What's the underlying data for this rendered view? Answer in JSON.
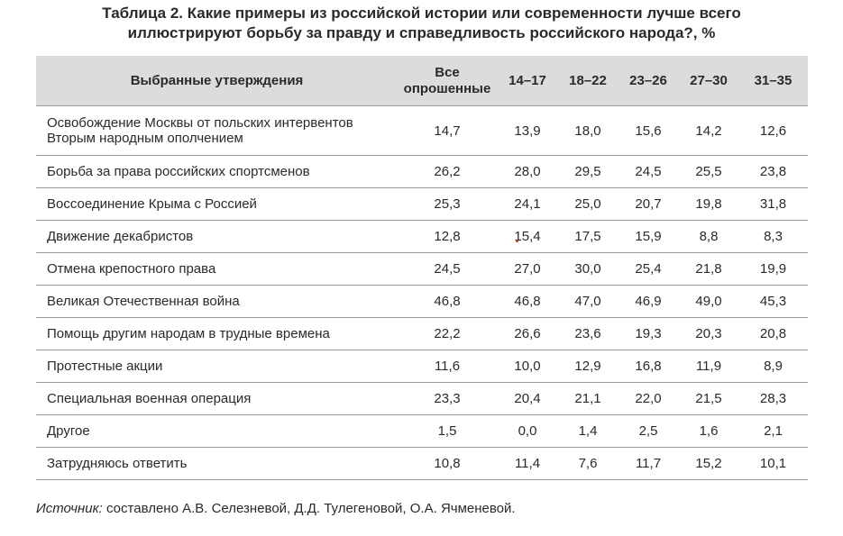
{
  "title": {
    "line1": "Таблица 2. Какие примеры из российской истории или современности лучше всего",
    "line2": "иллюстрируют борьбу за правду и справедливость российского народа?, %"
  },
  "table": {
    "headers": [
      "Выбранные утверждения",
      "Все опрошенные",
      "14–17",
      "18–22",
      "23–26",
      "27–30",
      "31–35"
    ],
    "rows": [
      {
        "label": "Освобождение Москвы от польских интервентов Вторым народным ополчением",
        "values": [
          "14,7",
          "13,9",
          "18,0",
          "15,6",
          "14,2",
          "12,6"
        ]
      },
      {
        "label": "Борьба за права российских спортсменов",
        "values": [
          "26,2",
          "28,0",
          "29,5",
          "24,5",
          "25,5",
          "23,8"
        ]
      },
      {
        "label": "Воссоединение Крыма с Россией",
        "values": [
          "25,3",
          "24,1",
          "25,0",
          "20,7",
          "19,8",
          "31,8"
        ]
      },
      {
        "label": "Движение декабристов",
        "values": [
          "12,8",
          "15,4",
          "17,5",
          "15,9",
          "8,8",
          "8,3"
        ]
      },
      {
        "label": "Отмена крепостного права",
        "values": [
          "24,5",
          "27,0",
          "30,0",
          "25,4",
          "21,8",
          "19,9"
        ]
      },
      {
        "label": "Великая Отечественная война",
        "values": [
          "46,8",
          "46,8",
          "47,0",
          "46,9",
          "49,0",
          "45,3"
        ]
      },
      {
        "label": "Помощь другим народам в трудные времена",
        "values": [
          "22,2",
          "26,6",
          "23,6",
          "19,3",
          "20,3",
          "20,8"
        ]
      },
      {
        "label": "Протестные акции",
        "values": [
          "11,6",
          "10,0",
          "12,9",
          "16,8",
          "11,9",
          "8,9"
        ]
      },
      {
        "label": "Специальная военная операция",
        "values": [
          "23,3",
          "20,4",
          "21,1",
          "22,0",
          "21,5",
          "28,3"
        ]
      },
      {
        "label": "Другое",
        "values": [
          "1,5",
          "0,0",
          "1,4",
          "2,5",
          "1,6",
          "2,1"
        ]
      },
      {
        "label": "Затрудняюсь ответить",
        "values": [
          "10,8",
          "11,4",
          "7,6",
          "11,7",
          "15,2",
          "10,1"
        ]
      }
    ]
  },
  "source": {
    "prefix": "Источник:",
    "text": " составлено А.В. Селезневой, Д.Д. Тулегеновой, О.А. Ячменевой."
  }
}
